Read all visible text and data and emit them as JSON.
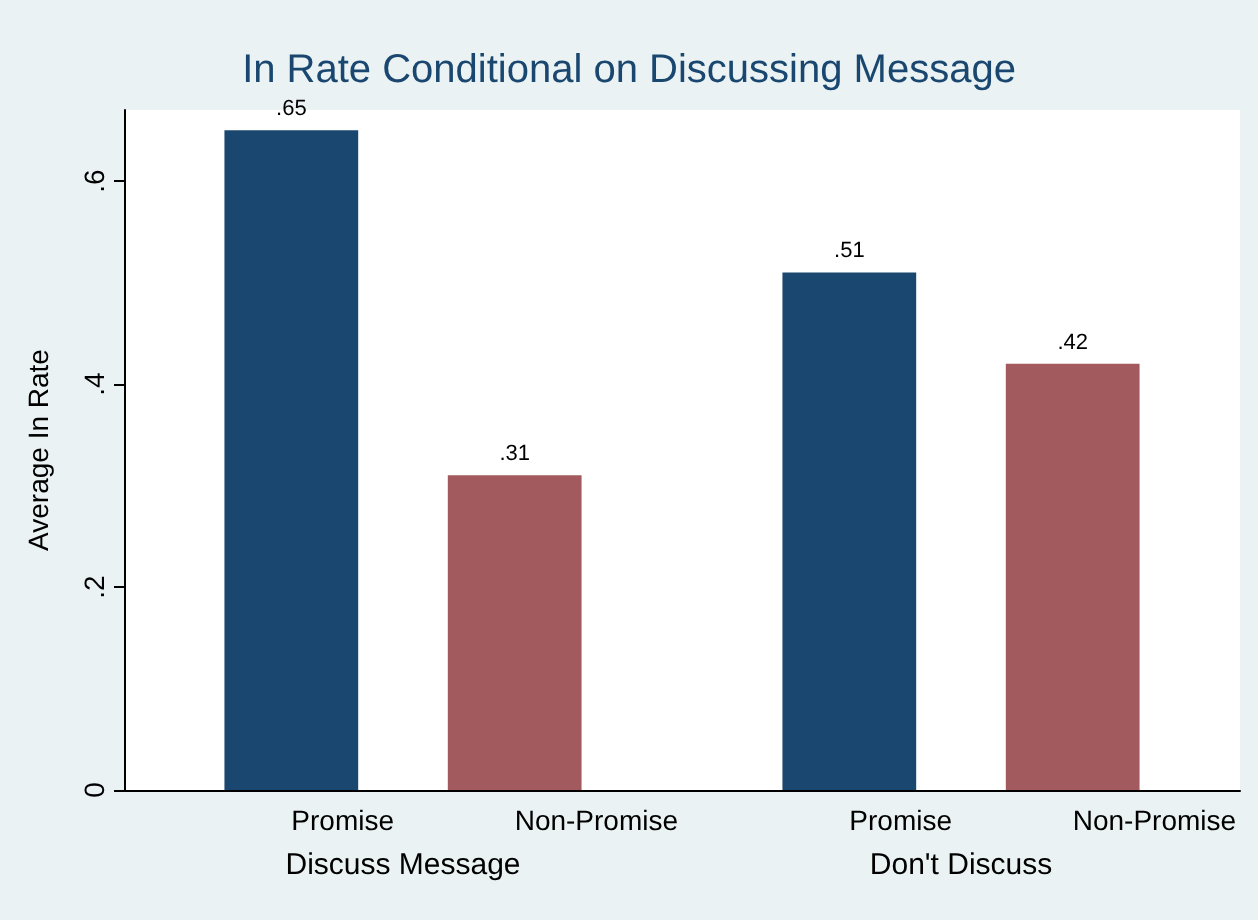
{
  "chart_data": {
    "type": "bar",
    "title": "In Rate Conditional on Discussing Message",
    "ylabel": "Average In Rate",
    "categories": [
      "Discuss Message",
      "Don't Discuss"
    ],
    "series": [
      {
        "name": "Promise",
        "color": "#1a476f",
        "values": [
          0.65,
          0.51
        ],
        "value_labels": [
          ".65",
          ".51"
        ]
      },
      {
        "name": "Non-Promise",
        "color": "#a35a5e",
        "values": [
          0.31,
          0.42
        ],
        "value_labels": [
          ".31",
          ".42"
        ]
      }
    ],
    "ylim": [
      0,
      0.67
    ],
    "yticks": [
      0,
      {
        "value": 0.2,
        "label": ".2"
      },
      {
        "value": 0.4,
        "label": ".4"
      },
      {
        "value": 0.6,
        "label": ".6"
      }
    ],
    "grid": false,
    "legend": false
  }
}
